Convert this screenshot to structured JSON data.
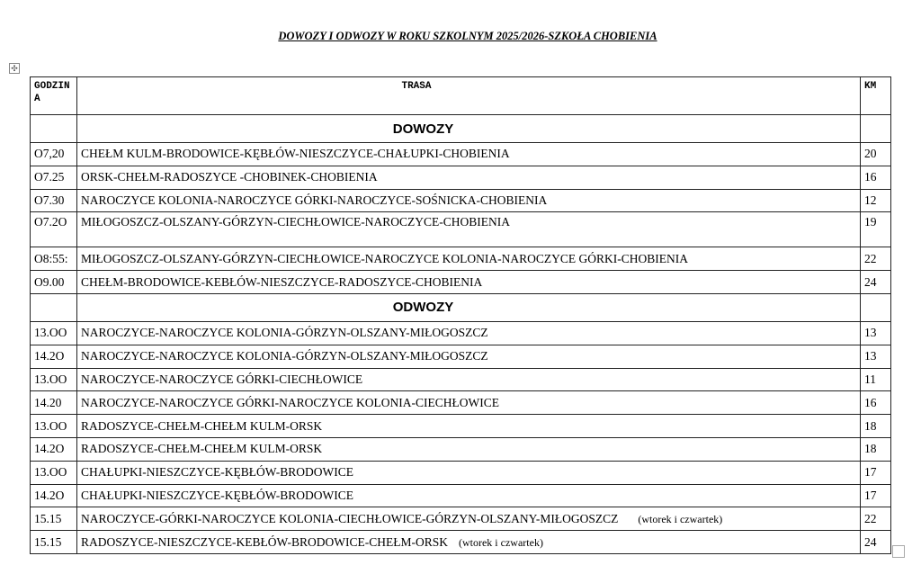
{
  "title": "DOWOZY I ODWOZY W ROKU SZKOLNYM 2025/2026-SZKOŁA CHOBIENIA",
  "headers": {
    "godzina": "GODZINA",
    "trasa": "TRASA",
    "km": "KM"
  },
  "sections": [
    {
      "label": "DOWOZY",
      "rows": [
        {
          "time": "O7,20",
          "route": "CHEŁM KULM-BRODOWICE-KĘBŁÓW-NIESZCZYCE-CHAŁUPKI-CHOBIENIA",
          "note": "",
          "km": "20"
        },
        {
          "time": "O7.25",
          "route": "ORSK-CHEŁM-RADOSZYCE -CHOBINEK-CHOBIENIA",
          "note": "",
          "km": "16"
        },
        {
          "time": "O7.30",
          "route": "NAROCZYCE KOLONIA-NAROCZYCE GÓRKI-NAROCZYCE-SOŚNICKA-CHOBIENIA",
          "note": "",
          "km": "12"
        },
        {
          "time": "O7.2O",
          "route": "MIŁOGOSZCZ-OLSZANY-GÓRZYN-CIECHŁOWICE-NAROCZYCE-CHOBIENIA",
          "note": "",
          "km": "19"
        },
        {
          "time": "O8:55:",
          "route": "MIŁOGOSZCZ-OLSZANY-GÓRZYN-CIECHŁOWICE-NAROCZYCE KOLONIA-NAROCZYCE GÓRKI-CHOBIENIA",
          "note": "",
          "km": "22"
        },
        {
          "time": "O9.00",
          "route": "CHEŁM-BRODOWICE-KEBŁÓW-NIESZCZYCE-RADOSZYCE-CHOBIENIA",
          "note": "",
          "km": "24"
        }
      ]
    },
    {
      "label": "ODWOZY",
      "rows": [
        {
          "time": "13.OO",
          "route": "NAROCZYCE-NAROCZYCE KOLONIA-GÓRZYN-OLSZANY-MIŁOGOSZCZ",
          "note": "",
          "km": "13"
        },
        {
          "time": "14.2O",
          "route": "NAROCZYCE-NAROCZYCE KOLONIA-GÓRZYN-OLSZANY-MIŁOGOSZCZ",
          "note": "",
          "km": "13"
        },
        {
          "time": "13.OO",
          "route": "NAROCZYCE-NAROCZYCE GÓRKI-CIECHŁOWICE",
          "note": "",
          "km": "11"
        },
        {
          "time": "14.20",
          "route": "NAROCZYCE-NAROCZYCE GÓRKI-NAROCZYCE KOLONIA-CIECHŁOWICE",
          "note": "",
          "km": "16"
        },
        {
          "time": "13.OO",
          "route": "RADOSZYCE-CHEŁM-CHEŁM KULM-ORSK",
          "note": "",
          "km": "18"
        },
        {
          "time": "14.2O",
          "route": "RADOSZYCE-CHEŁM-CHEŁM KULM-ORSK",
          "note": "",
          "km": "18"
        },
        {
          "time": "13.OO",
          "route": "CHAŁUPKI-NIESZCZYCE-KĘBŁÓW-BRODOWICE",
          "note": "",
          "km": "17"
        },
        {
          "time": "14.2O",
          "route": "CHAŁUPKI-NIESZCZYCE-KĘBŁÓW-BRODOWICE",
          "note": "",
          "km": "17"
        },
        {
          "time": "15.15",
          "route": "NAROCZYCE-GÓRKI-NAROCZYCE KOLONIA-CIECHŁOWICE-GÓRZYN-OLSZANY-MIŁOGOSZCZ",
          "note": "(wtorek i czwartek)",
          "km": "22"
        },
        {
          "time": "15.15",
          "route": "RADOSZYCE-NIESZCZYCE-KEBŁÓW-BRODOWICE-CHEŁM-ORSK",
          "note": "(wtorek i czwartek)",
          "km": "24"
        }
      ]
    }
  ]
}
